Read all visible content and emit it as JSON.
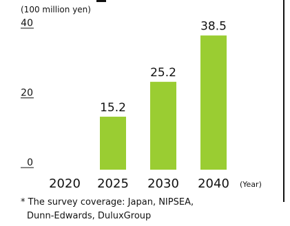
{
  "chart_data": {
    "type": "bar",
    "unit_label": "(100 million yen)",
    "categories": [
      "2020",
      "2025",
      "2030",
      "2040"
    ],
    "values": [
      0,
      15.2,
      25.2,
      38.5
    ],
    "data_labels": [
      "",
      "15.2",
      "25.2",
      "38.5"
    ],
    "y_ticks": [
      {
        "value": 0,
        "label": "0"
      },
      {
        "value": 20,
        "label": "20"
      },
      {
        "value": 40,
        "label": "40"
      }
    ],
    "ylim": [
      0,
      40
    ],
    "x_unit_label": "(Year)",
    "bar_color": "#9acd32",
    "grid": false,
    "footnote_line1": "* The survey coverage: Japan, NIPSEA,",
    "footnote_line2": "Dunn-Edwards, DuluxGroup"
  }
}
